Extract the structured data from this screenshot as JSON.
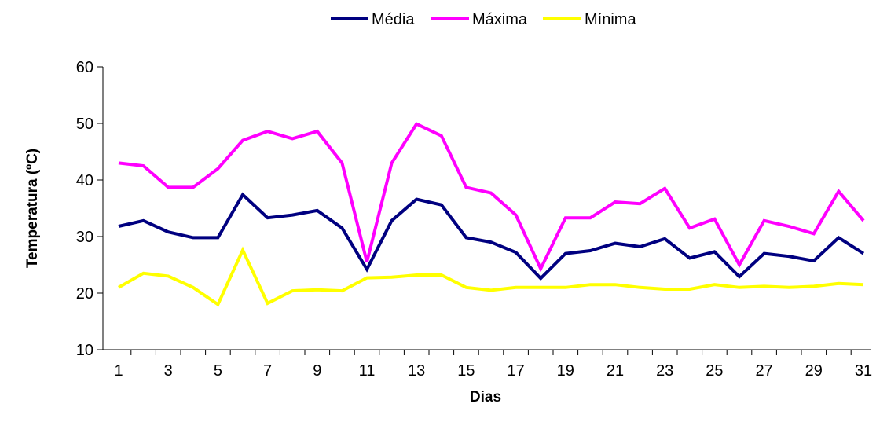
{
  "chart_data": {
    "type": "line",
    "title": "",
    "xlabel": "Dias",
    "ylabel": "Temperatura (ºC)",
    "ylim": [
      10,
      60
    ],
    "yticks": [
      10,
      20,
      30,
      40,
      50,
      60
    ],
    "x": [
      1,
      2,
      3,
      4,
      5,
      6,
      7,
      8,
      9,
      10,
      11,
      12,
      13,
      14,
      15,
      16,
      17,
      18,
      19,
      20,
      21,
      22,
      23,
      24,
      25,
      26,
      27,
      28,
      29,
      30,
      31
    ],
    "xtick_labels": [
      "1",
      "3",
      "5",
      "7",
      "9",
      "11",
      "13",
      "15",
      "17",
      "19",
      "21",
      "23",
      "25",
      "27",
      "29",
      "31"
    ],
    "legend_position": "top-center",
    "grid": false,
    "series": [
      {
        "name": "Média",
        "color": "#000080",
        "values": [
          31.8,
          32.8,
          30.8,
          29.8,
          29.8,
          37.4,
          33.3,
          33.8,
          34.6,
          31.5,
          24.2,
          32.8,
          36.6,
          35.6,
          29.8,
          29.0,
          27.2,
          22.6,
          27.0,
          27.5,
          28.8,
          28.2,
          29.6,
          26.2,
          27.3,
          22.9,
          27.0,
          26.5,
          25.7,
          29.8,
          27.0
        ]
      },
      {
        "name": "Máxima",
        "color": "#FF00FF",
        "values": [
          43.0,
          42.5,
          38.7,
          38.7,
          42.0,
          47.0,
          48.6,
          47.3,
          48.6,
          43.0,
          25.5,
          43.0,
          49.9,
          47.8,
          38.7,
          37.7,
          33.8,
          24.3,
          33.3,
          33.3,
          36.1,
          35.8,
          38.5,
          31.5,
          33.1,
          25.0,
          32.8,
          31.8,
          30.5,
          38.0,
          32.8
        ]
      },
      {
        "name": "Mínima",
        "color": "#FFFF00",
        "values": [
          21.0,
          23.5,
          23.0,
          21.0,
          18.0,
          27.6,
          18.2,
          20.4,
          20.6,
          20.4,
          22.7,
          22.8,
          23.2,
          23.2,
          21.0,
          20.5,
          21.0,
          21.0,
          21.0,
          21.5,
          21.5,
          21.0,
          20.7,
          20.7,
          21.5,
          21.0,
          21.2,
          21.0,
          21.2,
          21.7,
          21.5
        ]
      }
    ]
  }
}
